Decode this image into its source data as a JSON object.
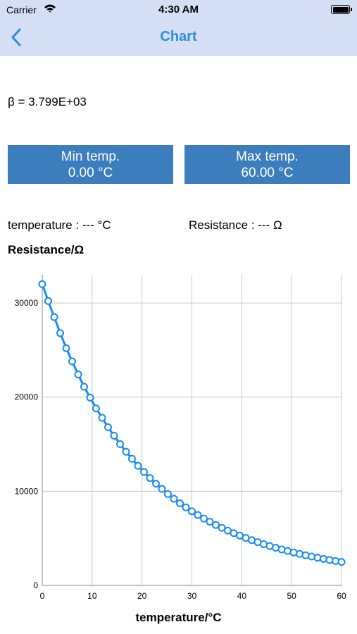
{
  "status_bar": {
    "carrier": "Carrier",
    "time": "4:30 AM",
    "battery_level": 1.0
  },
  "nav": {
    "title": "Chart",
    "back_icon": "chevron-left-icon"
  },
  "beta": {
    "text": "β = 3.799E+03"
  },
  "buttons": {
    "min_label": "Min temp.",
    "min_value": "0.00 °C",
    "max_label": "Max temp.",
    "max_value": "60.00 °C"
  },
  "readouts": {
    "temperature": "temperature : --- °C",
    "resistance": "Resistance : --- Ω"
  },
  "colors": {
    "nav_background": "#d4def5",
    "accent": "#2b8fd6",
    "button": "#3c7dbd",
    "series": "#1a8cf0"
  },
  "chart_data": {
    "type": "line",
    "title": "Resistance/Ω",
    "xlabel": "temperature/°C",
    "ylabel": "Resistance/Ω",
    "xlim": [
      0,
      60
    ],
    "ylim": [
      0,
      33000
    ],
    "x_ticks": [
      0,
      10,
      20,
      30,
      40,
      50,
      60
    ],
    "y_ticks": [
      0,
      10000,
      20000,
      30000
    ],
    "grid": true,
    "legend": "none",
    "markers": "hollow-circle",
    "x": [
      0,
      1.2,
      2.4,
      3.6,
      4.8,
      6.0,
      7.2,
      8.4,
      9.6,
      10.8,
      12.0,
      13.2,
      14.4,
      15.6,
      16.8,
      18.0,
      19.2,
      20.4,
      21.6,
      22.8,
      24.0,
      25.2,
      26.4,
      27.6,
      28.8,
      30.0,
      31.2,
      32.4,
      33.6,
      34.8,
      36.0,
      37.2,
      38.4,
      39.6,
      40.8,
      42.0,
      43.2,
      44.4,
      45.6,
      46.8,
      48.0,
      49.2,
      50.4,
      51.6,
      52.8,
      54.0,
      55.2,
      56.4,
      57.6,
      58.8,
      60.0
    ],
    "values": [
      32000,
      30200,
      28500,
      26800,
      25200,
      23800,
      22400,
      21100,
      19950,
      18800,
      17800,
      16800,
      15900,
      15000,
      14200,
      13450,
      12700,
      12050,
      11400,
      10800,
      10250,
      9700,
      9200,
      8720,
      8290,
      7870,
      7470,
      7100,
      6760,
      6420,
      6120,
      5820,
      5550,
      5290,
      5040,
      4810,
      4590,
      4380,
      4180,
      4000,
      3820,
      3660,
      3500,
      3350,
      3200,
      3070,
      2940,
      2820,
      2700,
      2590,
      2490
    ]
  }
}
